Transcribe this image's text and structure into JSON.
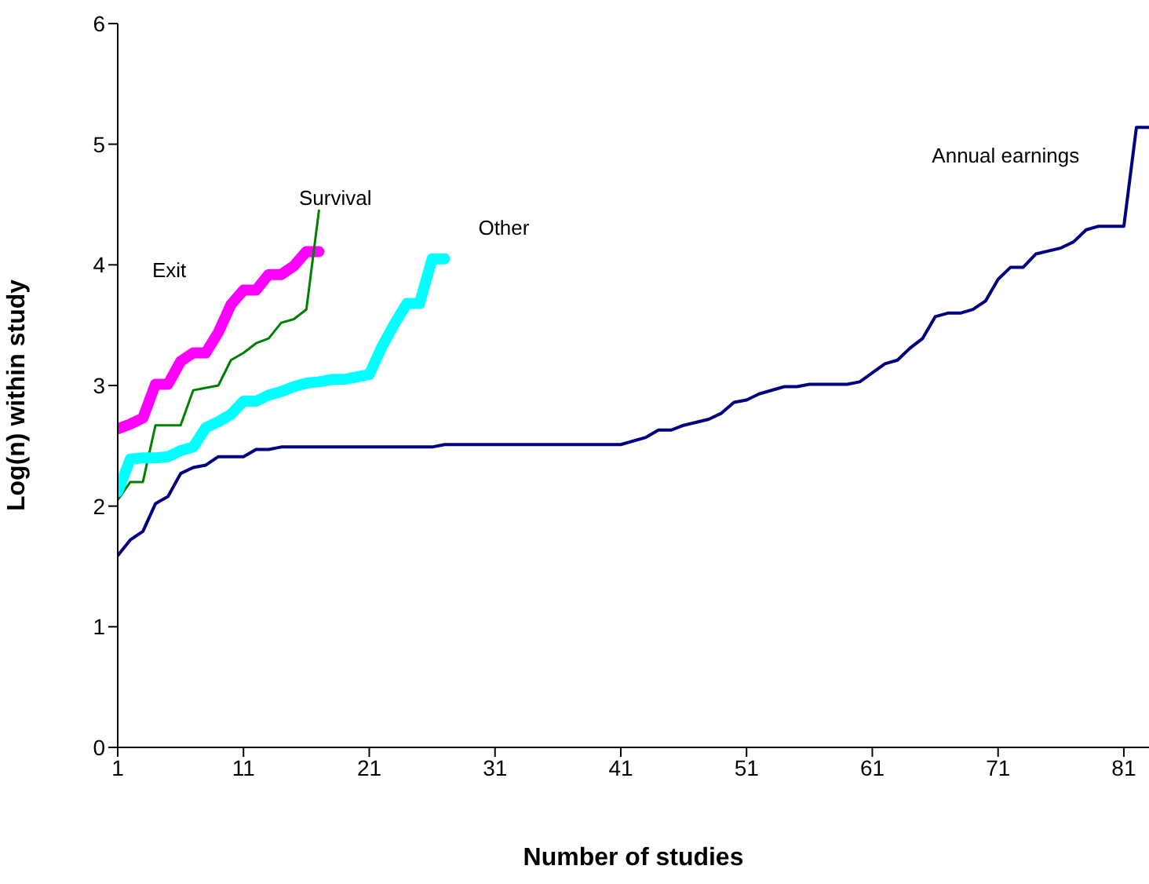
{
  "chart_data": {
    "type": "line",
    "xlabel": "Number of studies",
    "ylabel": "Log(n) within study",
    "xlim": [
      1,
      83
    ],
    "xticks": [
      1,
      11,
      21,
      31,
      41,
      51,
      61,
      71,
      81
    ],
    "ylim": [
      0,
      6
    ],
    "yticks": [
      0,
      1,
      2,
      3,
      4,
      5,
      6
    ],
    "grid": false,
    "legend": false,
    "marker": "none",
    "line_style": "solid",
    "series": [
      {
        "name": "Exit",
        "color": "#ff00ff",
        "x": [
          1,
          2,
          3,
          4,
          5,
          6,
          7,
          8,
          9,
          10,
          11,
          12,
          13,
          14,
          15,
          16,
          17
        ],
        "values": [
          2.64,
          2.68,
          2.73,
          3.01,
          3.01,
          3.2,
          3.27,
          3.27,
          3.44,
          3.67,
          3.79,
          3.79,
          3.92,
          3.92,
          3.99,
          4.11,
          4.11
        ]
      },
      {
        "name": "Survival",
        "color": "#008000",
        "x": [
          1,
          2,
          3,
          4,
          5,
          6,
          7,
          8,
          9,
          10,
          11,
          12,
          13,
          14,
          15,
          16,
          17
        ],
        "values": [
          2.05,
          2.2,
          2.2,
          2.67,
          2.67,
          2.67,
          2.96,
          2.98,
          3.0,
          3.21,
          3.27,
          3.35,
          3.39,
          3.52,
          3.55,
          3.63,
          4.45
        ]
      },
      {
        "name": "Other",
        "color": "#00ffff",
        "x": [
          1,
          2,
          3,
          4,
          5,
          6,
          7,
          8,
          9,
          10,
          11,
          12,
          13,
          14,
          15,
          16,
          17,
          18,
          19,
          20,
          21,
          22,
          23,
          24,
          25,
          26,
          27
        ],
        "values": [
          2.12,
          2.39,
          2.4,
          2.4,
          2.41,
          2.46,
          2.49,
          2.65,
          2.7,
          2.76,
          2.87,
          2.87,
          2.92,
          2.95,
          2.99,
          3.02,
          3.03,
          3.05,
          3.05,
          3.07,
          3.09,
          3.32,
          3.51,
          3.68,
          3.68,
          4.05,
          4.05
        ]
      },
      {
        "name": "Annual earnings",
        "color": "#000080",
        "x": [
          1,
          2,
          3,
          4,
          5,
          6,
          7,
          8,
          9,
          11,
          12,
          13,
          14,
          26,
          27,
          41,
          43,
          44,
          45,
          46,
          48,
          49,
          50,
          51,
          52,
          54,
          55,
          56,
          59,
          60,
          62,
          63,
          64,
          65,
          66,
          67,
          68,
          69,
          70,
          71,
          72,
          73,
          74,
          76,
          77,
          78,
          79,
          81,
          82,
          83
        ],
        "values": [
          1.59,
          1.72,
          1.79,
          2.02,
          2.08,
          2.27,
          2.32,
          2.34,
          2.41,
          2.41,
          2.47,
          2.47,
          2.49,
          2.49,
          2.51,
          2.51,
          2.57,
          2.63,
          2.63,
          2.67,
          2.72,
          2.77,
          2.86,
          2.88,
          2.93,
          2.99,
          2.99,
          3.01,
          3.01,
          3.03,
          3.18,
          3.21,
          3.31,
          3.39,
          3.57,
          3.6,
          3.6,
          3.63,
          3.7,
          3.88,
          3.98,
          3.98,
          4.09,
          4.14,
          4.19,
          4.29,
          4.32,
          4.32,
          5.14,
          5.14
        ]
      }
    ]
  }
}
